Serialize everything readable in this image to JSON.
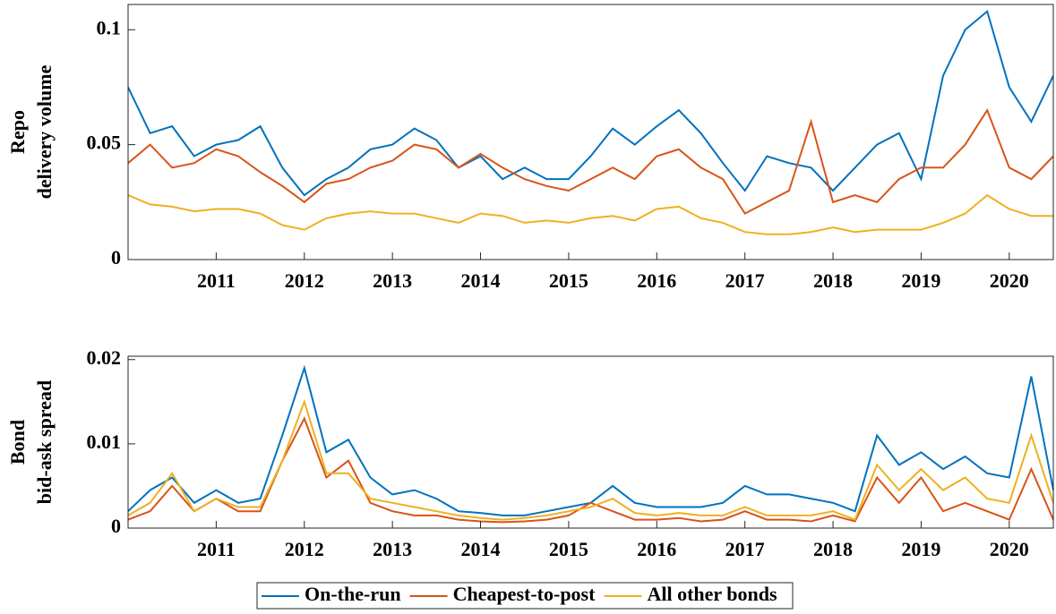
{
  "chart_data": [
    {
      "type": "line",
      "ylabel": [
        "Repo",
        "delivery volume"
      ],
      "x": [
        2010,
        2010.25,
        2010.5,
        2010.75,
        2011,
        2011.25,
        2011.5,
        2011.75,
        2012,
        2012.25,
        2012.5,
        2012.75,
        2013,
        2013.25,
        2013.5,
        2013.75,
        2014,
        2014.25,
        2014.5,
        2014.75,
        2015,
        2015.25,
        2015.5,
        2015.75,
        2016,
        2016.25,
        2016.5,
        2016.75,
        2017,
        2017.25,
        2017.5,
        2017.75,
        2018,
        2018.25,
        2018.5,
        2018.75,
        2019,
        2019.25,
        2019.5,
        2019.75,
        2020,
        2020.25,
        2020.5
      ],
      "series": [
        {
          "name": "On-the-run",
          "color": "#0072bd",
          "values": [
            0.075,
            0.055,
            0.058,
            0.045,
            0.05,
            0.052,
            0.058,
            0.04,
            0.028,
            0.035,
            0.04,
            0.048,
            0.05,
            0.057,
            0.052,
            0.04,
            0.045,
            0.035,
            0.04,
            0.035,
            0.035,
            0.045,
            0.057,
            0.05,
            0.058,
            0.065,
            0.055,
            0.042,
            0.03,
            0.045,
            0.042,
            0.04,
            0.03,
            0.04,
            0.05,
            0.055,
            0.035,
            0.08,
            0.1,
            0.108,
            0.075,
            0.06,
            0.08
          ]
        },
        {
          "name": "Cheapest-to-post",
          "color": "#d95319",
          "values": [
            0.042,
            0.05,
            0.04,
            0.042,
            0.048,
            0.045,
            0.038,
            0.032,
            0.025,
            0.033,
            0.035,
            0.04,
            0.043,
            0.05,
            0.048,
            0.04,
            0.046,
            0.04,
            0.035,
            0.032,
            0.03,
            0.035,
            0.04,
            0.035,
            0.045,
            0.048,
            0.04,
            0.035,
            0.02,
            0.025,
            0.03,
            0.06,
            0.025,
            0.028,
            0.025,
            0.035,
            0.04,
            0.04,
            0.05,
            0.065,
            0.04,
            0.035,
            0.045
          ]
        },
        {
          "name": "All other bonds",
          "color": "#edb120",
          "values": [
            0.028,
            0.024,
            0.023,
            0.021,
            0.022,
            0.022,
            0.02,
            0.015,
            0.013,
            0.018,
            0.02,
            0.021,
            0.02,
            0.02,
            0.018,
            0.016,
            0.02,
            0.019,
            0.016,
            0.017,
            0.016,
            0.018,
            0.019,
            0.017,
            0.022,
            0.023,
            0.018,
            0.016,
            0.012,
            0.011,
            0.011,
            0.012,
            0.014,
            0.012,
            0.013,
            0.013,
            0.013,
            0.016,
            0.02,
            0.028,
            0.022,
            0.019,
            0.019
          ]
        }
      ],
      "xlim": [
        2010,
        2020.5
      ],
      "xticks": [
        2011,
        2012,
        2013,
        2014,
        2015,
        2016,
        2017,
        2018,
        2019,
        2020
      ],
      "ylim": [
        0,
        0.111
      ],
      "yticks": [
        0,
        0.05,
        0.1
      ],
      "grid": false
    },
    {
      "type": "line",
      "ylabel": [
        "Bond",
        "bid-ask spread"
      ],
      "x": [
        2010,
        2010.25,
        2010.5,
        2010.75,
        2011,
        2011.25,
        2011.5,
        2011.75,
        2012,
        2012.25,
        2012.5,
        2012.75,
        2013,
        2013.25,
        2013.5,
        2013.75,
        2014,
        2014.25,
        2014.5,
        2014.75,
        2015,
        2015.25,
        2015.5,
        2015.75,
        2016,
        2016.25,
        2016.5,
        2016.75,
        2017,
        2017.25,
        2017.5,
        2017.75,
        2018,
        2018.25,
        2018.5,
        2018.75,
        2019,
        2019.25,
        2019.5,
        2019.75,
        2020,
        2020.25,
        2020.5
      ],
      "series": [
        {
          "color": "#0072bd",
          "values": [
            0.002,
            0.0045,
            0.006,
            0.003,
            0.0045,
            0.003,
            0.0035,
            0.011,
            0.019,
            0.009,
            0.0105,
            0.006,
            0.004,
            0.0045,
            0.0035,
            0.002,
            0.0018,
            0.0015,
            0.0015,
            0.002,
            0.0025,
            0.003,
            0.005,
            0.003,
            0.0025,
            0.0025,
            0.0025,
            0.003,
            0.005,
            0.004,
            0.004,
            0.0035,
            0.003,
            0.002,
            0.011,
            0.0075,
            0.009,
            0.007,
            0.0085,
            0.0065,
            0.006,
            0.018,
            0.0045
          ]
        },
        {
          "color": "#d95319",
          "values": [
            0.001,
            0.002,
            0.005,
            0.002,
            0.0035,
            0.002,
            0.002,
            0.008,
            0.013,
            0.006,
            0.008,
            0.003,
            0.002,
            0.0015,
            0.0015,
            0.001,
            0.0008,
            0.0007,
            0.0008,
            0.001,
            0.0015,
            0.003,
            0.002,
            0.001,
            0.001,
            0.0012,
            0.0008,
            0.001,
            0.002,
            0.001,
            0.001,
            0.0008,
            0.0015,
            0.0008,
            0.006,
            0.003,
            0.006,
            0.002,
            0.003,
            0.002,
            0.001,
            0.007,
            0.001
          ]
        },
        {
          "color": "#edb120",
          "values": [
            0.0015,
            0.003,
            0.0065,
            0.002,
            0.0035,
            0.0025,
            0.0025,
            0.008,
            0.015,
            0.0065,
            0.0065,
            0.0035,
            0.003,
            0.0025,
            0.002,
            0.0015,
            0.0012,
            0.001,
            0.0012,
            0.0015,
            0.002,
            0.0025,
            0.0035,
            0.0018,
            0.0015,
            0.0018,
            0.0015,
            0.0015,
            0.0025,
            0.0015,
            0.0015,
            0.0015,
            0.002,
            0.001,
            0.0075,
            0.0045,
            0.007,
            0.0045,
            0.006,
            0.0035,
            0.003,
            0.011,
            0.003
          ]
        }
      ],
      "xlim": [
        2010,
        2020.5
      ],
      "xticks": [
        2011,
        2012,
        2013,
        2014,
        2015,
        2016,
        2017,
        2018,
        2019,
        2020
      ],
      "ylim": [
        0,
        0.0204
      ],
      "yticks": [
        0,
        0.01,
        0.02
      ],
      "grid": false
    }
  ]
}
